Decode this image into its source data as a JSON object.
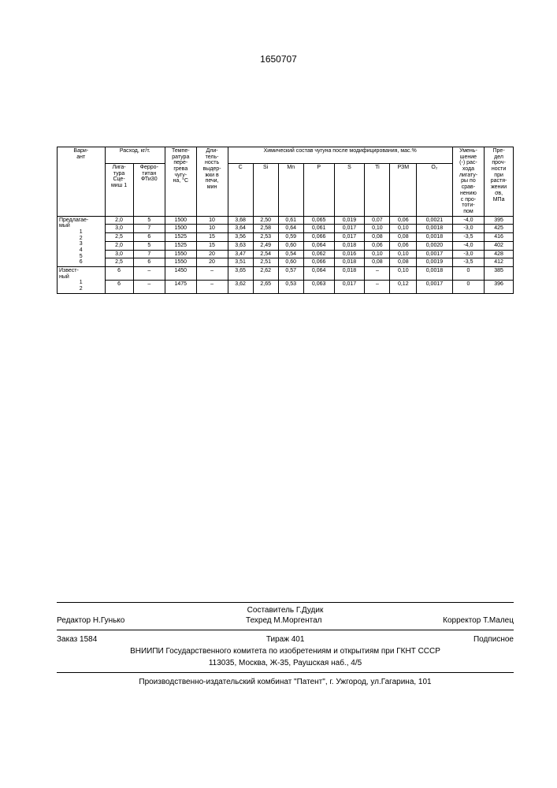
{
  "page_number": "1650707",
  "table": {
    "headers": {
      "variant": "Вари-\nант",
      "consumption_group": "Расход, кг/т.",
      "ligature": "Лига-\nтура\nСце-\nмиш 1",
      "ferrotitan": "Ферро-\nтитан\nФТи30",
      "temperature": "Темпе-\nратура\nпере-\nгрева\nчугу-\nна, °C",
      "duration": "Дли-\nтель-\nность\nвыдер-\nжки в\nпечи,\nмин",
      "chem_group": "Химический состав чугуна после модифицирования, мас.%",
      "C": "C",
      "Si": "Si",
      "Mn": "Mn",
      "P": "P",
      "S": "S",
      "Ti": "Ti",
      "RZM": "РЗМ",
      "O2": "O₂",
      "reduction": "Умень-\nшение\n(-) рас-\nхода\nлигату-\nры по\nсрав-\nнению\nс про-\nтоти-\nпом",
      "strength": "Пре-\nдел\nпроч-\nности\nпри\nрастя-\nжении\nσв,\nМПа"
    },
    "row_group_labels": {
      "proposed": "Предлагае-\nмый",
      "known": "Извест-\nный"
    },
    "rows_proposed": [
      {
        "n": "1",
        "lig": "2,0",
        "ft": "5",
        "temp": "1500",
        "dur": "10",
        "C": "3,68",
        "Si": "2,50",
        "Mn": "0,61",
        "P": "0,065",
        "S": "0,019",
        "Ti": "0,07",
        "RZM": "0,06",
        "O2": "0,0021",
        "red": "-4,0",
        "str": "395"
      },
      {
        "n": "2",
        "lig": "3,0",
        "ft": "7",
        "temp": "1500",
        "dur": "10",
        "C": "3,64",
        "Si": "2,58",
        "Mn": "0,64",
        "P": "0,061",
        "S": "0,017",
        "Ti": "0,10",
        "RZM": "0,10",
        "O2": "0,0018",
        "red": "-3,0",
        "str": "425"
      },
      {
        "n": "3",
        "lig": "2,5",
        "ft": "6",
        "temp": "1525",
        "dur": "15",
        "C": "3,56",
        "Si": "2,53",
        "Mn": "0,59",
        "P": "0,066",
        "S": "0,017",
        "Ti": "0,08",
        "RZM": "0,08",
        "O2": "0,0018",
        "red": "-3,5",
        "str": "416"
      },
      {
        "n": "4",
        "lig": "2,0",
        "ft": "5",
        "temp": "1525",
        "dur": "15",
        "C": "3,63",
        "Si": "2,49",
        "Mn": "0,60",
        "P": "0,064",
        "S": "0,018",
        "Ti": "0,06",
        "RZM": "0,06",
        "O2": "0,0020",
        "red": "-4,0",
        "str": "402"
      },
      {
        "n": "5",
        "lig": "3,0",
        "ft": "7",
        "temp": "1550",
        "dur": "20",
        "C": "3,47",
        "Si": "2,54",
        "Mn": "0,54",
        "P": "0,062",
        "S": "0,016",
        "Ti": "0,10",
        "RZM": "0,10",
        "O2": "0,0017",
        "red": "-3,0",
        "str": "428"
      },
      {
        "n": "6",
        "lig": "2,5",
        "ft": "6",
        "temp": "1550",
        "dur": "20",
        "C": "3,51",
        "Si": "2,51",
        "Mn": "0,60",
        "P": "0,066",
        "S": "0,018",
        "Ti": "0,08",
        "RZM": "0,08",
        "O2": "0,0019",
        "red": "-3,5",
        "str": "412"
      }
    ],
    "rows_known": [
      {
        "n": "1",
        "lig": "6",
        "ft": "–",
        "temp": "1450",
        "dur": "–",
        "C": "3,65",
        "Si": "2,62",
        "Mn": "0,57",
        "P": "0,064",
        "S": "0,018",
        "Ti": "–",
        "RZM": "0,10",
        "O2": "0,0018",
        "red": "0",
        "str": "385"
      },
      {
        "n": "2",
        "lig": "6",
        "ft": "–",
        "temp": "1475",
        "dur": "–",
        "C": "3,62",
        "Si": "2,65",
        "Mn": "0,53",
        "P": "0,063",
        "S": "0,017",
        "Ti": "–",
        "RZM": "0,12",
        "O2": "0,0017",
        "red": "0",
        "str": "396"
      }
    ]
  },
  "footer": {
    "compiler": "Составитель Г.Дудик",
    "editor": "Редактор Н.Гунько",
    "techred": "Техред М.Моргентал",
    "corrector": "Корректор Т.Малец",
    "order": "Заказ 1584",
    "tirazh": "Тираж 401",
    "subscribe": "Подписное",
    "vniipi": "ВНИИПИ Государственного комитета по изобретениям и открытиям при ГКНТ СССР",
    "address": "113035, Москва, Ж-35, Раушская наб., 4/5",
    "printer": "Производственно-издательский комбинат \"Патент\", г. Ужгород, ул.Гагарина, 101"
  }
}
